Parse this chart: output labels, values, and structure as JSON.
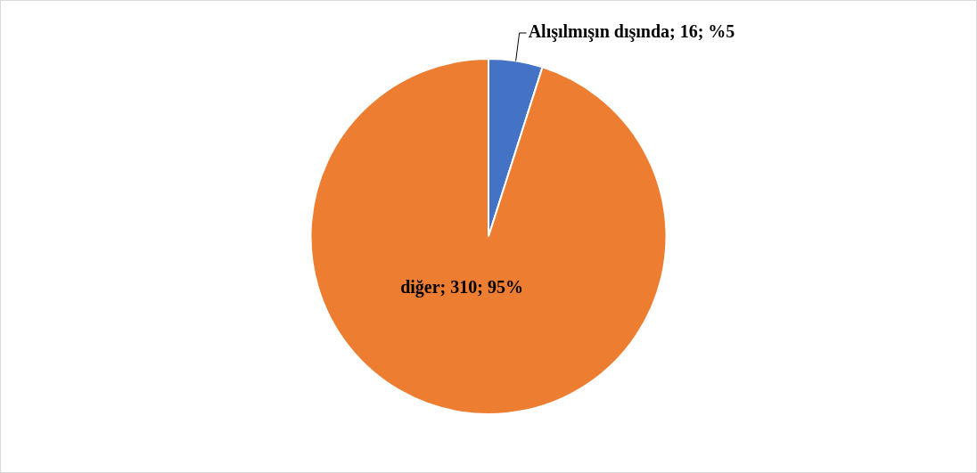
{
  "chart_data": {
    "type": "pie",
    "categories": [
      "Alışılmışın dışında",
      "diğer"
    ],
    "values": [
      16,
      310
    ],
    "colors": [
      "#4472c4",
      "#ed7d31"
    ],
    "value_labels": [
      "16; %5",
      "310; 95%"
    ],
    "legend": false
  }
}
